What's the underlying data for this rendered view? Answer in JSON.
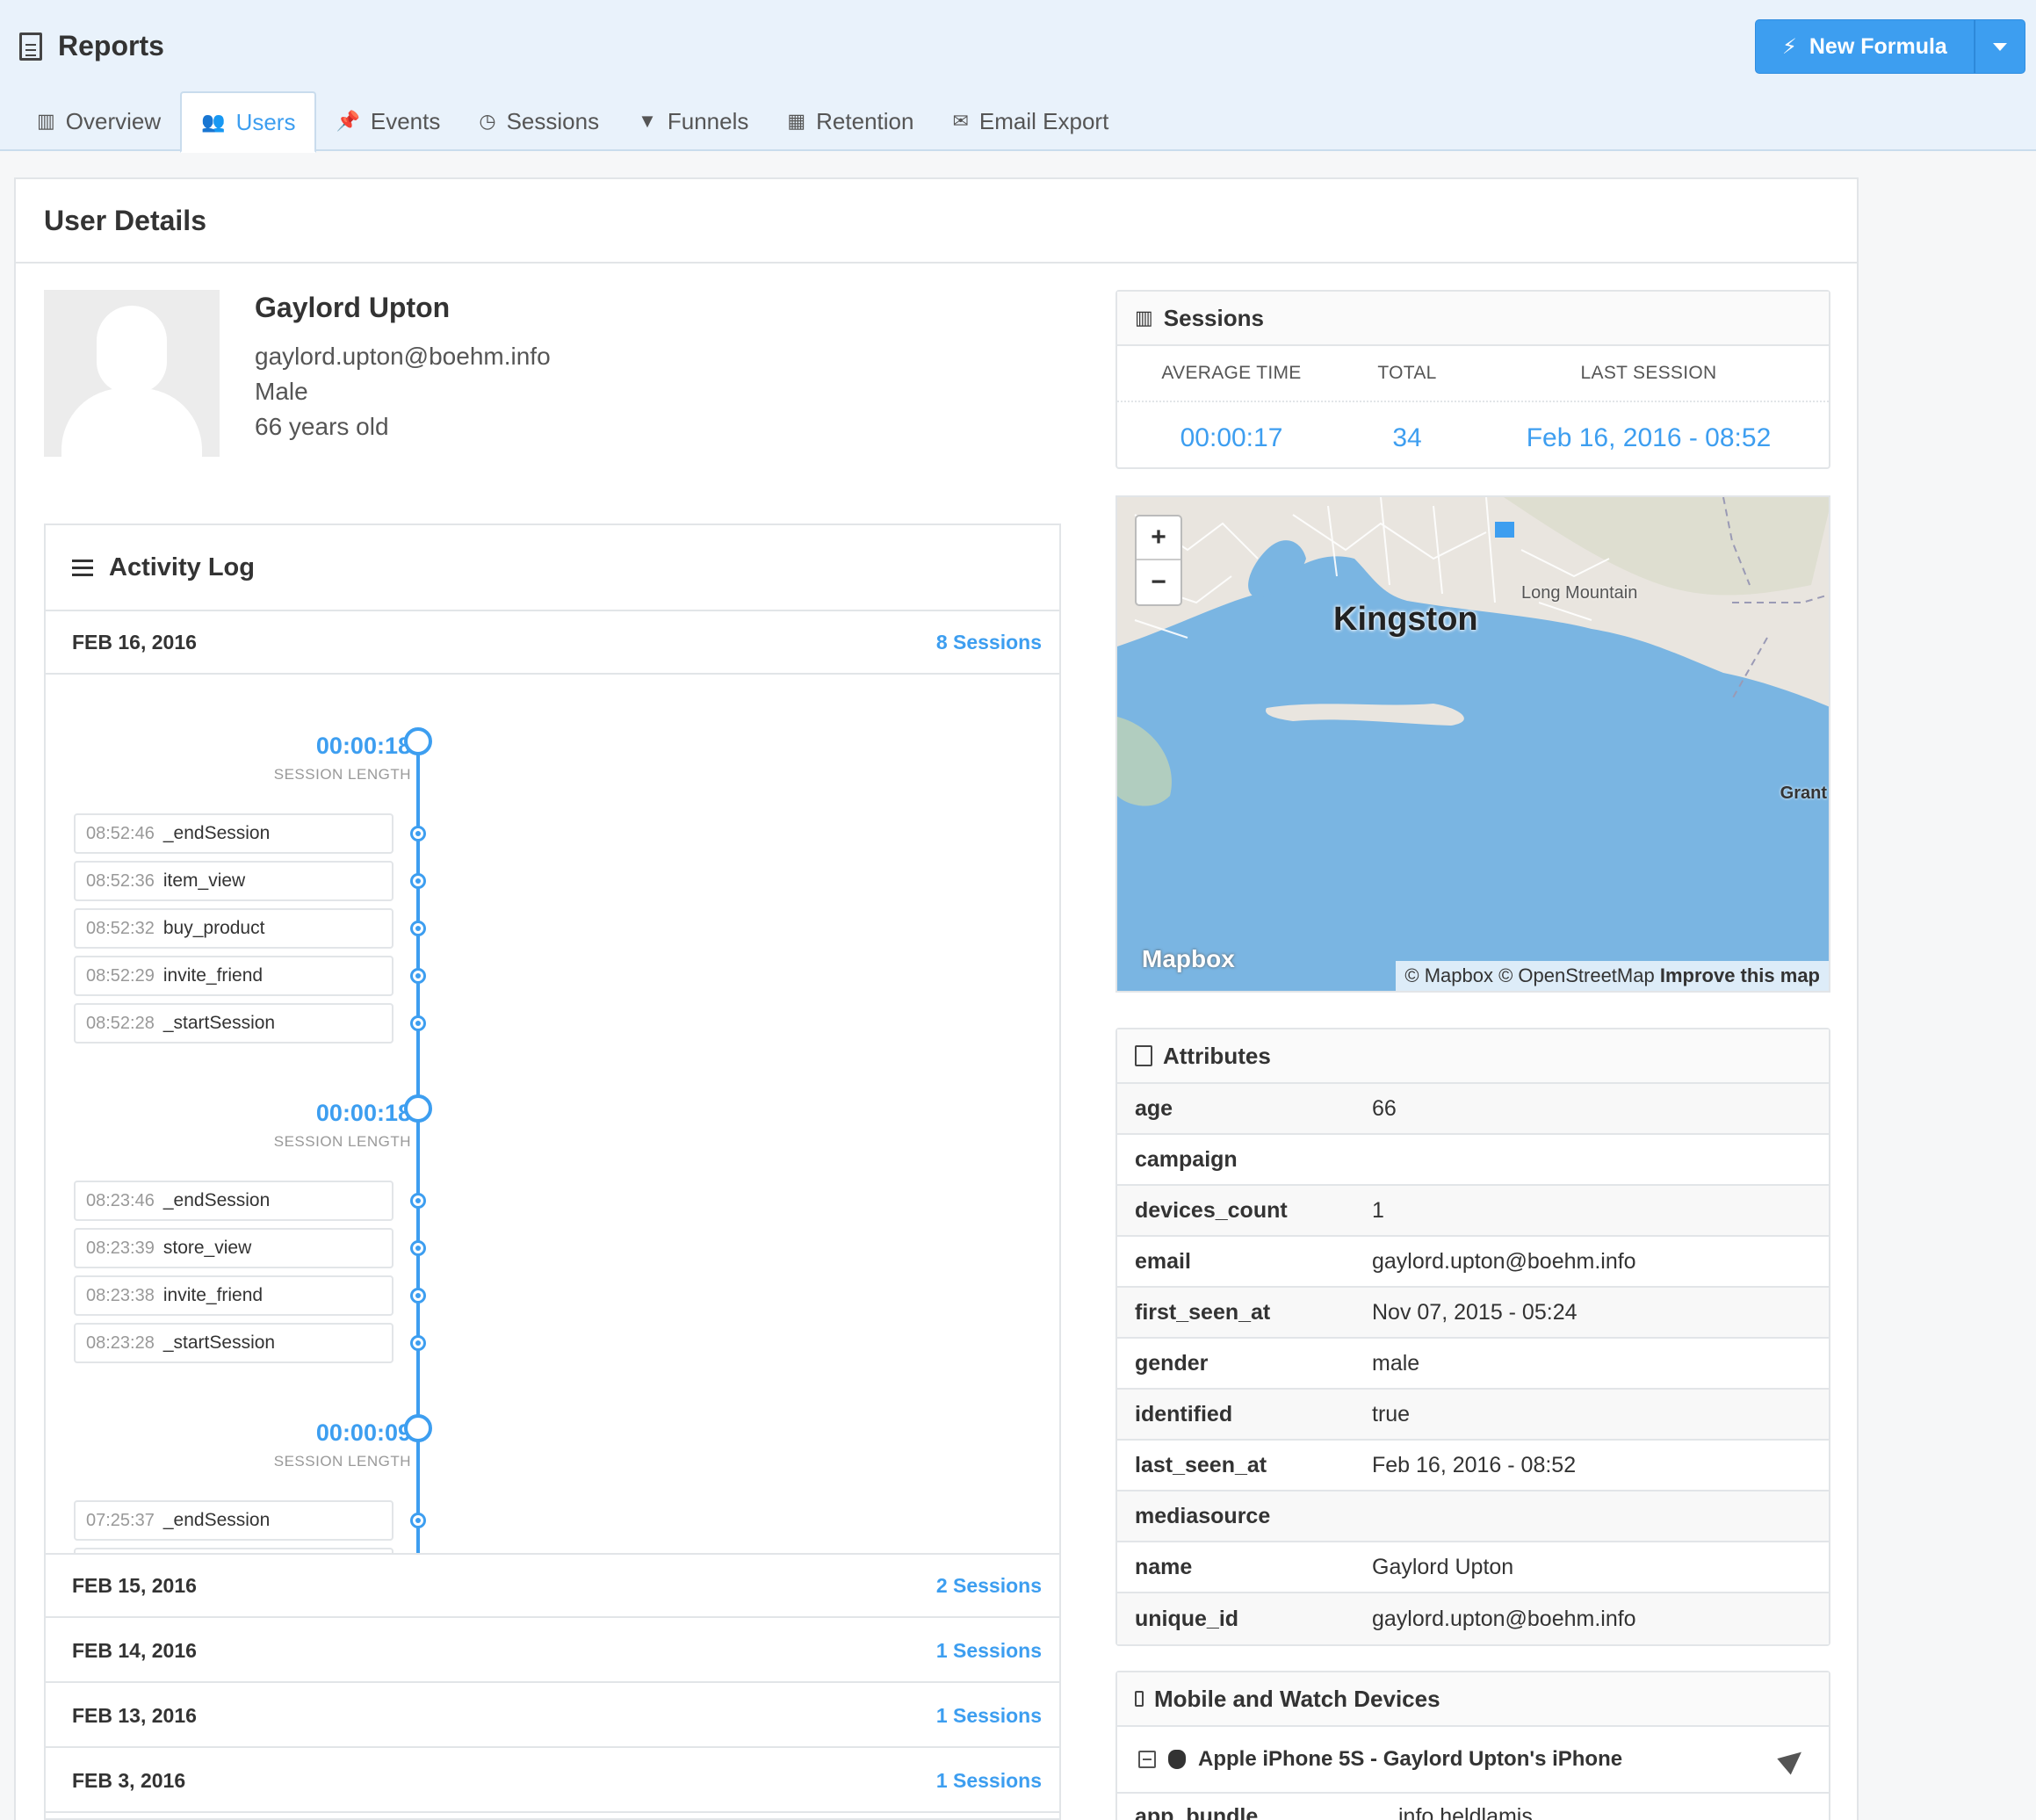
{
  "header": {
    "title": "Reports",
    "new_formula_label": "New Formula"
  },
  "tabs": [
    {
      "label": "Overview",
      "icon": "bar-chart-icon"
    },
    {
      "label": "Users",
      "icon": "users-icon"
    },
    {
      "label": "Events",
      "icon": "pin-icon"
    },
    {
      "label": "Sessions",
      "icon": "clock-icon"
    },
    {
      "label": "Funnels",
      "icon": "filter-icon"
    },
    {
      "label": "Retention",
      "icon": "grid-icon"
    },
    {
      "label": "Email Export",
      "icon": "envelope-icon"
    }
  ],
  "active_tab": "Users",
  "page_title": "User Details",
  "user": {
    "name": "Gaylord Upton",
    "email": "gaylord.upton@boehm.info",
    "gender": "Male",
    "age": "66 years old"
  },
  "activity": {
    "title": "Activity Log",
    "expanded_day": {
      "date": "FEB 16, 2016",
      "sessions": "8 Sessions"
    },
    "sessions": [
      {
        "length": "00:00:18",
        "length_label": "SESSION LENGTH",
        "events": [
          {
            "time": "08:52:46",
            "name": "_endSession"
          },
          {
            "time": "08:52:36",
            "name": "item_view"
          },
          {
            "time": "08:52:32",
            "name": "buy_product"
          },
          {
            "time": "08:52:29",
            "name": "invite_friend"
          },
          {
            "time": "08:52:28",
            "name": "_startSession"
          }
        ]
      },
      {
        "length": "00:00:18",
        "length_label": "SESSION LENGTH",
        "events": [
          {
            "time": "08:23:46",
            "name": "_endSession"
          },
          {
            "time": "08:23:39",
            "name": "store_view"
          },
          {
            "time": "08:23:38",
            "name": "invite_friend"
          },
          {
            "time": "08:23:28",
            "name": "_startSession"
          }
        ]
      },
      {
        "length": "00:00:09",
        "length_label": "SESSION LENGTH",
        "events": [
          {
            "time": "07:25:37",
            "name": "_endSession"
          }
        ]
      }
    ],
    "other_days": [
      {
        "date": "FEB 15, 2016",
        "sessions": "2 Sessions"
      },
      {
        "date": "FEB 14, 2016",
        "sessions": "1 Sessions"
      },
      {
        "date": "FEB 13, 2016",
        "sessions": "1 Sessions"
      },
      {
        "date": "FEB 3, 2016",
        "sessions": "1 Sessions"
      }
    ]
  },
  "sessions_box": {
    "title": "Sessions",
    "labels": {
      "average": "AVERAGE TIME",
      "total": "TOTAL",
      "last": "LAST SESSION"
    },
    "values": {
      "average": "00:00:17",
      "total": "34",
      "last": "Feb 16, 2016 - 08:52"
    }
  },
  "map": {
    "city": "Kingston",
    "labels": {
      "mountain": "Long Mountain",
      "grant": "Grant"
    },
    "logo": "Mapbox",
    "attribution": "© Mapbox © OpenStreetMap",
    "improve": "Improve this map",
    "zoom_in": "+",
    "zoom_out": "−"
  },
  "attributes": {
    "title": "Attributes",
    "rows": [
      {
        "key": "age",
        "value": "66"
      },
      {
        "key": "campaign",
        "value": ""
      },
      {
        "key": "devices_count",
        "value": "1"
      },
      {
        "key": "email",
        "value": "gaylord.upton@boehm.info"
      },
      {
        "key": "first_seen_at",
        "value": "Nov 07, 2015 - 05:24"
      },
      {
        "key": "gender",
        "value": "male"
      },
      {
        "key": "identified",
        "value": "true"
      },
      {
        "key": "last_seen_at",
        "value": "Feb 16, 2016 - 08:52"
      },
      {
        "key": "mediasource",
        "value": ""
      },
      {
        "key": "name",
        "value": "Gaylord Upton"
      },
      {
        "key": "unique_id",
        "value": "gaylord.upton@boehm.info"
      }
    ]
  },
  "devices": {
    "title": "Mobile and Watch Devices",
    "device_name": "Apple iPhone 5S - Gaylord Upton's iPhone",
    "partial_row": {
      "key": "app_bundle",
      "value": "info.heldlamis"
    }
  },
  "colors": {
    "accent": "#3d9ef0",
    "header_bg": "#e9f2fb",
    "water": "#7ab5e2"
  }
}
